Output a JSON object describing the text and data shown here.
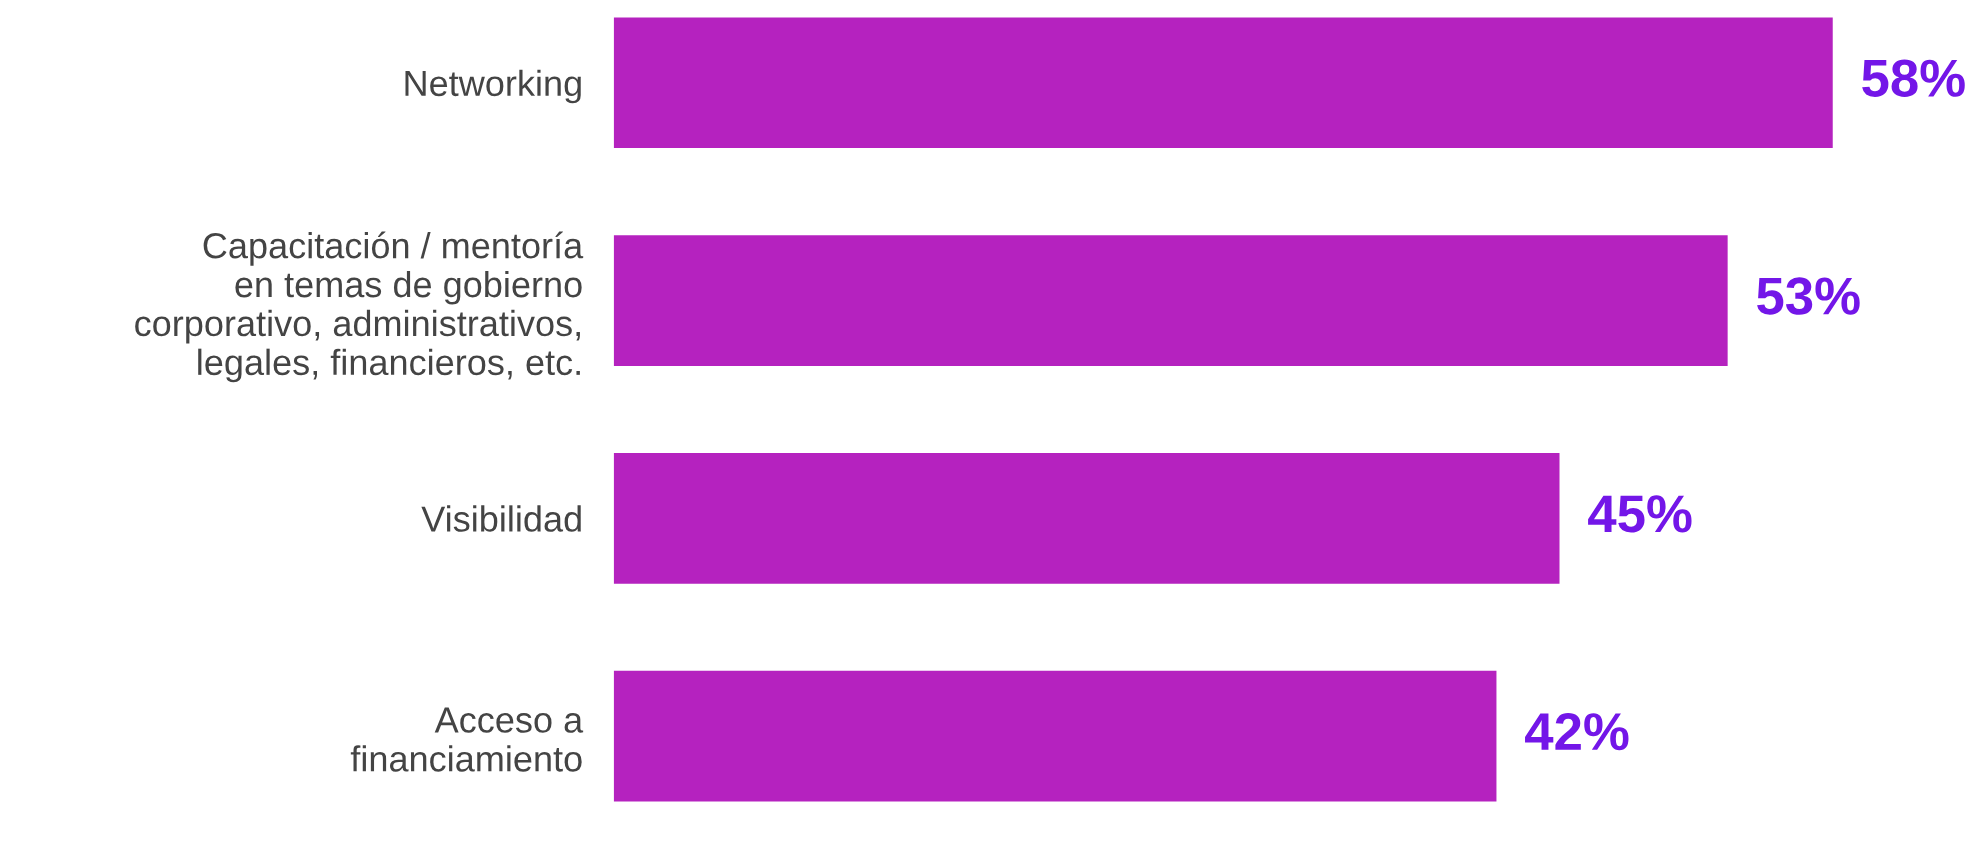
{
  "chart_data": {
    "type": "bar",
    "orientation": "horizontal",
    "categories": [
      "Networking",
      "Capacitación / mentoría\nen temas de gobierno\ncorporativo, administrativos,\nlegales, financieros, etc.",
      "Visibilidad",
      "Acceso a\nfinanciamiento"
    ],
    "values": [
      58,
      53,
      45,
      42
    ],
    "value_labels": [
      "58%",
      "53%",
      "45%",
      "42%"
    ],
    "color": "#b522bf"
  }
}
